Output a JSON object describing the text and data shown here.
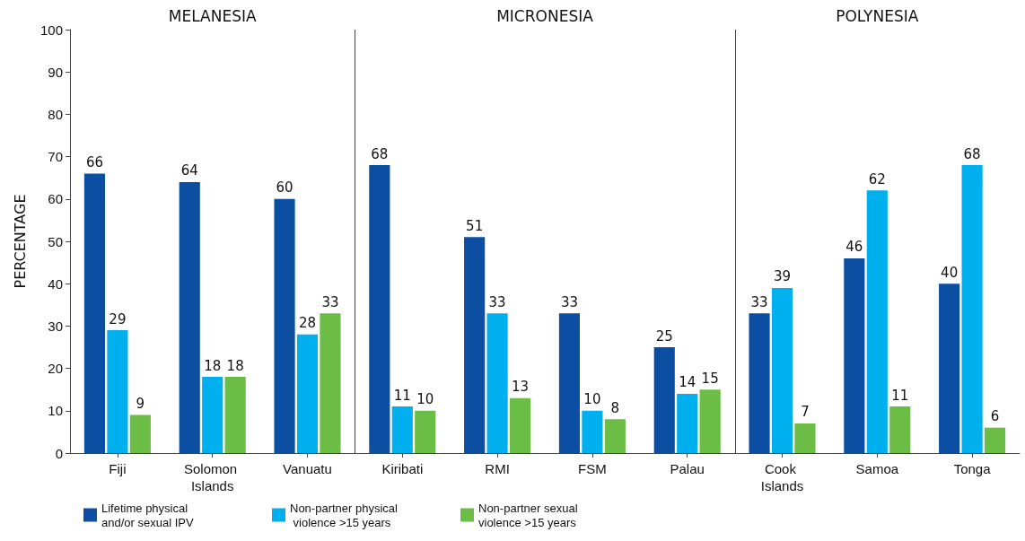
{
  "chart_data": {
    "type": "bar",
    "ylabel": "PERCENTAGE",
    "categories": [
      "Fiji",
      "Solomon Islands",
      "Vanuatu",
      "Kiribati",
      "RMI",
      "FSM",
      "Palau",
      "Cook Islands",
      "Samoa",
      "Tonga"
    ],
    "series": [
      {
        "name": "Lifetime physical and/or sexual IPV",
        "color": "#0b4ea2",
        "values": [
          66,
          64,
          60,
          68,
          51,
          33,
          25,
          33,
          46,
          40
        ]
      },
      {
        "name": "Non-partner physical violence >15 years",
        "color": "#00b0ee",
        "values": [
          29,
          18,
          28,
          11,
          33,
          10,
          14,
          39,
          62,
          68
        ]
      },
      {
        "name": "Non-partner sexual violence >15 years",
        "color": "#6cbd45",
        "values": [
          9,
          18,
          33,
          10,
          13,
          8,
          15,
          7,
          11,
          6
        ]
      }
    ],
    "ylim": [
      0,
      100
    ],
    "yticks": [
      0,
      10,
      20,
      30,
      40,
      50,
      60,
      70,
      80,
      90,
      100
    ],
    "data_labels": true,
    "grid": false,
    "legend": "bottom left",
    "annotations": [
      "MELANESIA",
      "MICRONESIA",
      "POLYNESIA"
    ]
  }
}
